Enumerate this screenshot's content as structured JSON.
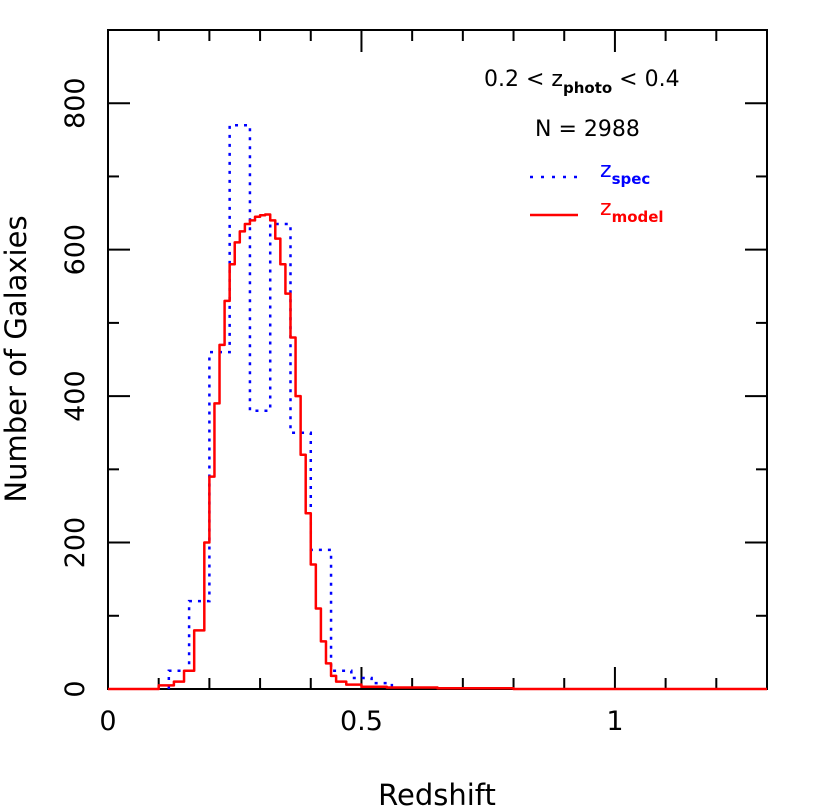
{
  "chart_data": {
    "type": "line",
    "title": "",
    "xlabel": "Redshift",
    "ylabel": "Number of Galaxies",
    "xlim": [
      0,
      1.3
    ],
    "ylim": [
      0,
      900
    ],
    "x_ticks": [
      0,
      0.5,
      1
    ],
    "x_tick_labels": [
      "0",
      "0.5",
      "1"
    ],
    "y_ticks": [
      0,
      200,
      400,
      600,
      800
    ],
    "y_tick_labels": [
      "0",
      "200",
      "400",
      "600",
      "800"
    ],
    "grid": false,
    "legend_placement": "top-right",
    "annotations": {
      "range_prefix": "0.2 < z",
      "range_subscript": "photo",
      "range_suffix": " < 0.4",
      "count": "N = 2988"
    },
    "series": [
      {
        "name": "spec",
        "legend_main": "z",
        "legend_sub": "spec",
        "style": "dotted-step",
        "color": "#0000ff",
        "bin_width": 0.04,
        "x": [
          0.12,
          0.16,
          0.2,
          0.24,
          0.28,
          0.32,
          0.36,
          0.4,
          0.44,
          0.48,
          0.52
        ],
        "y": [
          25,
          120,
          460,
          770,
          380,
          635,
          350,
          190,
          25,
          15,
          8
        ]
      },
      {
        "name": "model",
        "legend_main": "z",
        "legend_sub": "model",
        "style": "solid-step",
        "color": "#ff0000",
        "x": [
          0.0,
          0.1,
          0.13,
          0.15,
          0.17,
          0.19,
          0.2,
          0.21,
          0.22,
          0.23,
          0.24,
          0.25,
          0.26,
          0.27,
          0.28,
          0.29,
          0.3,
          0.31,
          0.32,
          0.33,
          0.34,
          0.35,
          0.36,
          0.37,
          0.38,
          0.39,
          0.4,
          0.41,
          0.42,
          0.43,
          0.44,
          0.45,
          0.47,
          0.5,
          0.55,
          0.65,
          0.8,
          1.0,
          1.3
        ],
        "y": [
          0,
          5,
          10,
          25,
          80,
          200,
          290,
          390,
          470,
          530,
          580,
          610,
          625,
          635,
          640,
          645,
          647,
          648,
          640,
          615,
          580,
          540,
          480,
          400,
          320,
          240,
          170,
          110,
          65,
          35,
          18,
          10,
          6,
          3,
          2,
          1,
          0,
          0,
          0
        ]
      }
    ]
  }
}
